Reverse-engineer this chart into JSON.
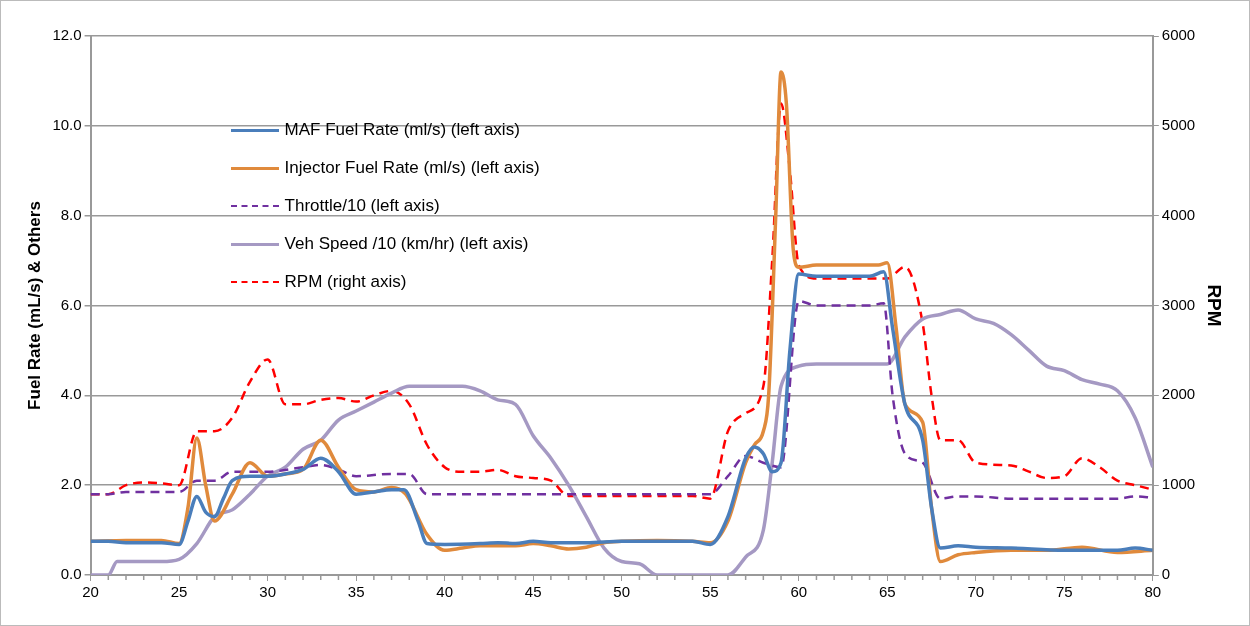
{
  "chart_data": {
    "type": "line",
    "xlabel": null,
    "ylabel": "Fuel Rate (mL/s) & Others",
    "y2label": "RPM",
    "xlim": [
      20,
      80
    ],
    "xticks": [
      20,
      {
        "value": 21,
        "label": null
      },
      {
        "value": 22,
        "label": null
      },
      {
        "value": 23,
        "label": null
      },
      {
        "value": 24,
        "label": null
      },
      25,
      {
        "value": 26,
        "label": null
      },
      {
        "value": 27,
        "label": null
      },
      {
        "value": 28,
        "label": null
      },
      {
        "value": 29,
        "label": null
      },
      30,
      {
        "value": 31,
        "label": null
      },
      {
        "value": 32,
        "label": null
      },
      {
        "value": 33,
        "label": null
      },
      {
        "value": 34,
        "label": null
      },
      35,
      {
        "value": 36,
        "label": null
      },
      {
        "value": 37,
        "label": null
      },
      {
        "value": 38,
        "label": null
      },
      {
        "value": 39,
        "label": null
      },
      40,
      {
        "value": 41,
        "label": null
      },
      {
        "value": 42,
        "label": null
      },
      {
        "value": 43,
        "label": null
      },
      {
        "value": 44,
        "label": null
      },
      45,
      {
        "value": 46,
        "label": null
      },
      {
        "value": 47,
        "label": null
      },
      {
        "value": 48,
        "label": null
      },
      {
        "value": 49,
        "label": null
      },
      50,
      {
        "value": 51,
        "label": null
      },
      {
        "value": 52,
        "label": null
      },
      {
        "value": 53,
        "label": null
      },
      {
        "value": 54,
        "label": null
      },
      55,
      {
        "value": 56,
        "label": null
      },
      {
        "value": 57,
        "label": null
      },
      {
        "value": 58,
        "label": null
      },
      {
        "value": 59,
        "label": null
      },
      60,
      {
        "value": 61,
        "label": null
      },
      {
        "value": 62,
        "label": null
      },
      {
        "value": 63,
        "label": null
      },
      {
        "value": 64,
        "label": null
      },
      65,
      {
        "value": 66,
        "label": null
      },
      {
        "value": 67,
        "label": null
      },
      {
        "value": 68,
        "label": null
      },
      {
        "value": 69,
        "label": null
      },
      70,
      {
        "value": 71,
        "label": null
      },
      {
        "value": 72,
        "label": null
      },
      {
        "value": 73,
        "label": null
      },
      {
        "value": 74,
        "label": null
      },
      75,
      {
        "value": 76,
        "label": null
      },
      {
        "value": 77,
        "label": null
      },
      {
        "value": 78,
        "label": null
      },
      {
        "value": 79,
        "label": null
      },
      80
    ],
    "ylim": [
      0,
      12
    ],
    "yticks": [
      {
        "value": 0,
        "label": "0.0"
      },
      {
        "value": 2,
        "label": "2.0"
      },
      {
        "value": 4,
        "label": "4.0"
      },
      {
        "value": 6,
        "label": "6.0"
      },
      {
        "value": 8,
        "label": "8.0"
      },
      {
        "value": 10,
        "label": "10.0"
      },
      {
        "value": 12,
        "label": "12.0"
      }
    ],
    "y2lim": [
      0,
      6000
    ],
    "y2ticks": [
      0,
      1000,
      2000,
      3000,
      4000,
      5000,
      6000
    ],
    "grid": "y",
    "legend": "top left",
    "series": [
      {
        "name": "MAF Fuel Rate (ml/s) (left axis)",
        "color": "#4a7ebb",
        "line_style": "solid",
        "x": [
          20,
          21,
          22,
          23,
          24,
          25,
          25.5,
          26,
          26.5,
          27,
          27.5,
          28,
          29,
          30,
          31,
          32,
          33,
          34,
          35,
          36,
          37,
          37.7,
          38.5,
          39,
          40,
          42,
          43,
          44,
          45,
          46,
          48,
          50,
          52,
          54,
          55,
          56,
          57,
          57.5,
          58,
          58.5,
          59,
          59.5,
          60,
          61,
          63,
          64,
          64.8,
          65.3,
          66,
          67,
          67.5,
          68,
          69,
          70,
          72,
          75,
          78,
          79,
          80
        ],
        "values": [
          0.75,
          0.75,
          0.72,
          0.72,
          0.72,
          0.68,
          1.2,
          1.75,
          1.4,
          1.3,
          1.7,
          2.1,
          2.2,
          2.2,
          2.25,
          2.35,
          2.6,
          2.3,
          1.8,
          1.85,
          1.9,
          1.9,
          1.2,
          0.7,
          0.68,
          0.7,
          0.72,
          0.7,
          0.75,
          0.72,
          0.72,
          0.75,
          0.75,
          0.75,
          0.68,
          1.3,
          2.6,
          2.85,
          2.7,
          2.3,
          2.5,
          5.0,
          6.7,
          6.65,
          6.65,
          6.65,
          6.75,
          5.5,
          3.8,
          3.0,
          1.5,
          0.6,
          0.65,
          0.62,
          0.6,
          0.55,
          0.55,
          0.6,
          0.55
        ]
      },
      {
        "name": "Injector Fuel Rate (ml/s) (left axis)",
        "color": "#e08a3c",
        "line_style": "solid",
        "x": [
          20,
          22,
          24,
          25,
          25.5,
          26,
          26.5,
          27,
          28,
          29,
          30,
          31,
          32,
          33,
          34,
          35,
          36,
          37,
          37.8,
          39,
          40,
          41,
          42,
          44,
          45,
          46,
          47,
          48,
          49,
          50,
          52,
          54,
          55,
          56,
          57,
          57.5,
          58,
          58.3,
          58.7,
          59,
          59.3,
          59.7,
          60,
          61,
          63,
          64.5,
          65,
          65.5,
          66,
          67,
          67.5,
          68,
          69,
          70,
          72,
          74,
          76,
          78,
          80
        ],
        "values": [
          0.75,
          0.77,
          0.77,
          0.7,
          1.5,
          3.05,
          2.0,
          1.2,
          1.8,
          2.5,
          2.2,
          2.25,
          2.35,
          3.0,
          2.4,
          1.9,
          1.85,
          1.95,
          1.8,
          0.9,
          0.55,
          0.6,
          0.65,
          0.65,
          0.7,
          0.65,
          0.58,
          0.62,
          0.72,
          0.75,
          0.77,
          0.75,
          0.72,
          1.2,
          2.5,
          2.9,
          3.2,
          4.0,
          8.0,
          11.2,
          10.5,
          7.2,
          6.85,
          6.9,
          6.9,
          6.9,
          6.95,
          5.5,
          3.8,
          3.4,
          1.5,
          0.3,
          0.45,
          0.5,
          0.55,
          0.55,
          0.62,
          0.5,
          0.55
        ]
      },
      {
        "name": "Throttle/10 (left axis)",
        "color": "#7030a0",
        "line_style": "dashed",
        "x": [
          20,
          21,
          22,
          24,
          25,
          26,
          27,
          28,
          30,
          32,
          33,
          34,
          35,
          37,
          38,
          39,
          40,
          42,
          44,
          46,
          48,
          50,
          55,
          56,
          57,
          58,
          59,
          60,
          61,
          63,
          64,
          64.8,
          65.3,
          66,
          67,
          68,
          69,
          70,
          72,
          76,
          78,
          79,
          80
        ],
        "values": [
          1.8,
          1.8,
          1.85,
          1.85,
          1.85,
          2.1,
          2.1,
          2.3,
          2.3,
          2.4,
          2.45,
          2.35,
          2.2,
          2.25,
          2.25,
          1.8,
          1.8,
          1.8,
          1.8,
          1.8,
          1.8,
          1.8,
          1.8,
          2.2,
          2.65,
          2.5,
          2.4,
          6.1,
          6.0,
          6.0,
          6.0,
          6.05,
          4.0,
          2.7,
          2.5,
          1.7,
          1.75,
          1.75,
          1.7,
          1.7,
          1.7,
          1.75,
          1.72
        ]
      },
      {
        "name": "Veh Speed /10 (km/hr) (left axis)",
        "color": "#a599c3",
        "line_style": "solid",
        "x": [
          20,
          21,
          21.5,
          22,
          24,
          25,
          26,
          27,
          28,
          29,
          30,
          31,
          32,
          33,
          34,
          35,
          36,
          37,
          38,
          40,
          41,
          42,
          43,
          44,
          45,
          46,
          47,
          48,
          49,
          50,
          51,
          52,
          55,
          56,
          57,
          58,
          58.5,
          59,
          60,
          61,
          64,
          65,
          66,
          67,
          68,
          69,
          70,
          71,
          72,
          73,
          74,
          75,
          76,
          77,
          78,
          79,
          80
        ],
        "values": [
          0,
          0,
          0.3,
          0.3,
          0.3,
          0.35,
          0.7,
          1.3,
          1.45,
          1.8,
          2.2,
          2.4,
          2.8,
          3.0,
          3.45,
          3.65,
          3.85,
          4.05,
          4.2,
          4.2,
          4.2,
          4.1,
          3.9,
          3.8,
          3.1,
          2.6,
          2.0,
          1.3,
          0.6,
          0.3,
          0.25,
          0,
          0,
          0,
          0.4,
          1.0,
          2.5,
          4.2,
          4.65,
          4.7,
          4.7,
          4.7,
          5.3,
          5.7,
          5.8,
          5.9,
          5.7,
          5.6,
          5.35,
          5.0,
          4.65,
          4.55,
          4.35,
          4.25,
          4.1,
          3.5,
          2.4
        ]
      },
      {
        "name": "RPM (right axis)",
        "color": "#ff0000",
        "line_style": "dashed",
        "axis": "y2",
        "x": [
          20,
          21,
          22,
          23,
          24,
          25,
          26,
          27,
          28,
          29,
          30,
          31,
          32,
          33,
          34,
          35,
          36,
          37,
          38,
          39,
          40,
          41,
          42,
          43,
          44,
          45,
          46,
          47,
          48,
          50,
          52,
          54,
          55,
          56,
          57,
          58,
          58.5,
          59,
          59.5,
          60,
          61,
          63,
          64,
          65,
          66,
          67,
          67.5,
          68,
          69,
          70,
          72,
          73,
          74,
          75,
          76,
          77,
          78,
          79,
          80
        ],
        "values": [
          900,
          900,
          1000,
          1030,
          1020,
          1000,
          1600,
          1600,
          1750,
          2150,
          2400,
          1900,
          1900,
          1950,
          1970,
          1930,
          2000,
          2050,
          1900,
          1450,
          1200,
          1150,
          1150,
          1170,
          1100,
          1080,
          1050,
          880,
          880,
          880,
          880,
          880,
          850,
          1600,
          1800,
          2100,
          3500,
          5250,
          4500,
          3450,
          3300,
          3300,
          3300,
          3300,
          3430,
          2800,
          2000,
          1500,
          1500,
          1250,
          1220,
          1150,
          1080,
          1100,
          1300,
          1200,
          1050,
          1000,
          950
        ]
      }
    ]
  }
}
